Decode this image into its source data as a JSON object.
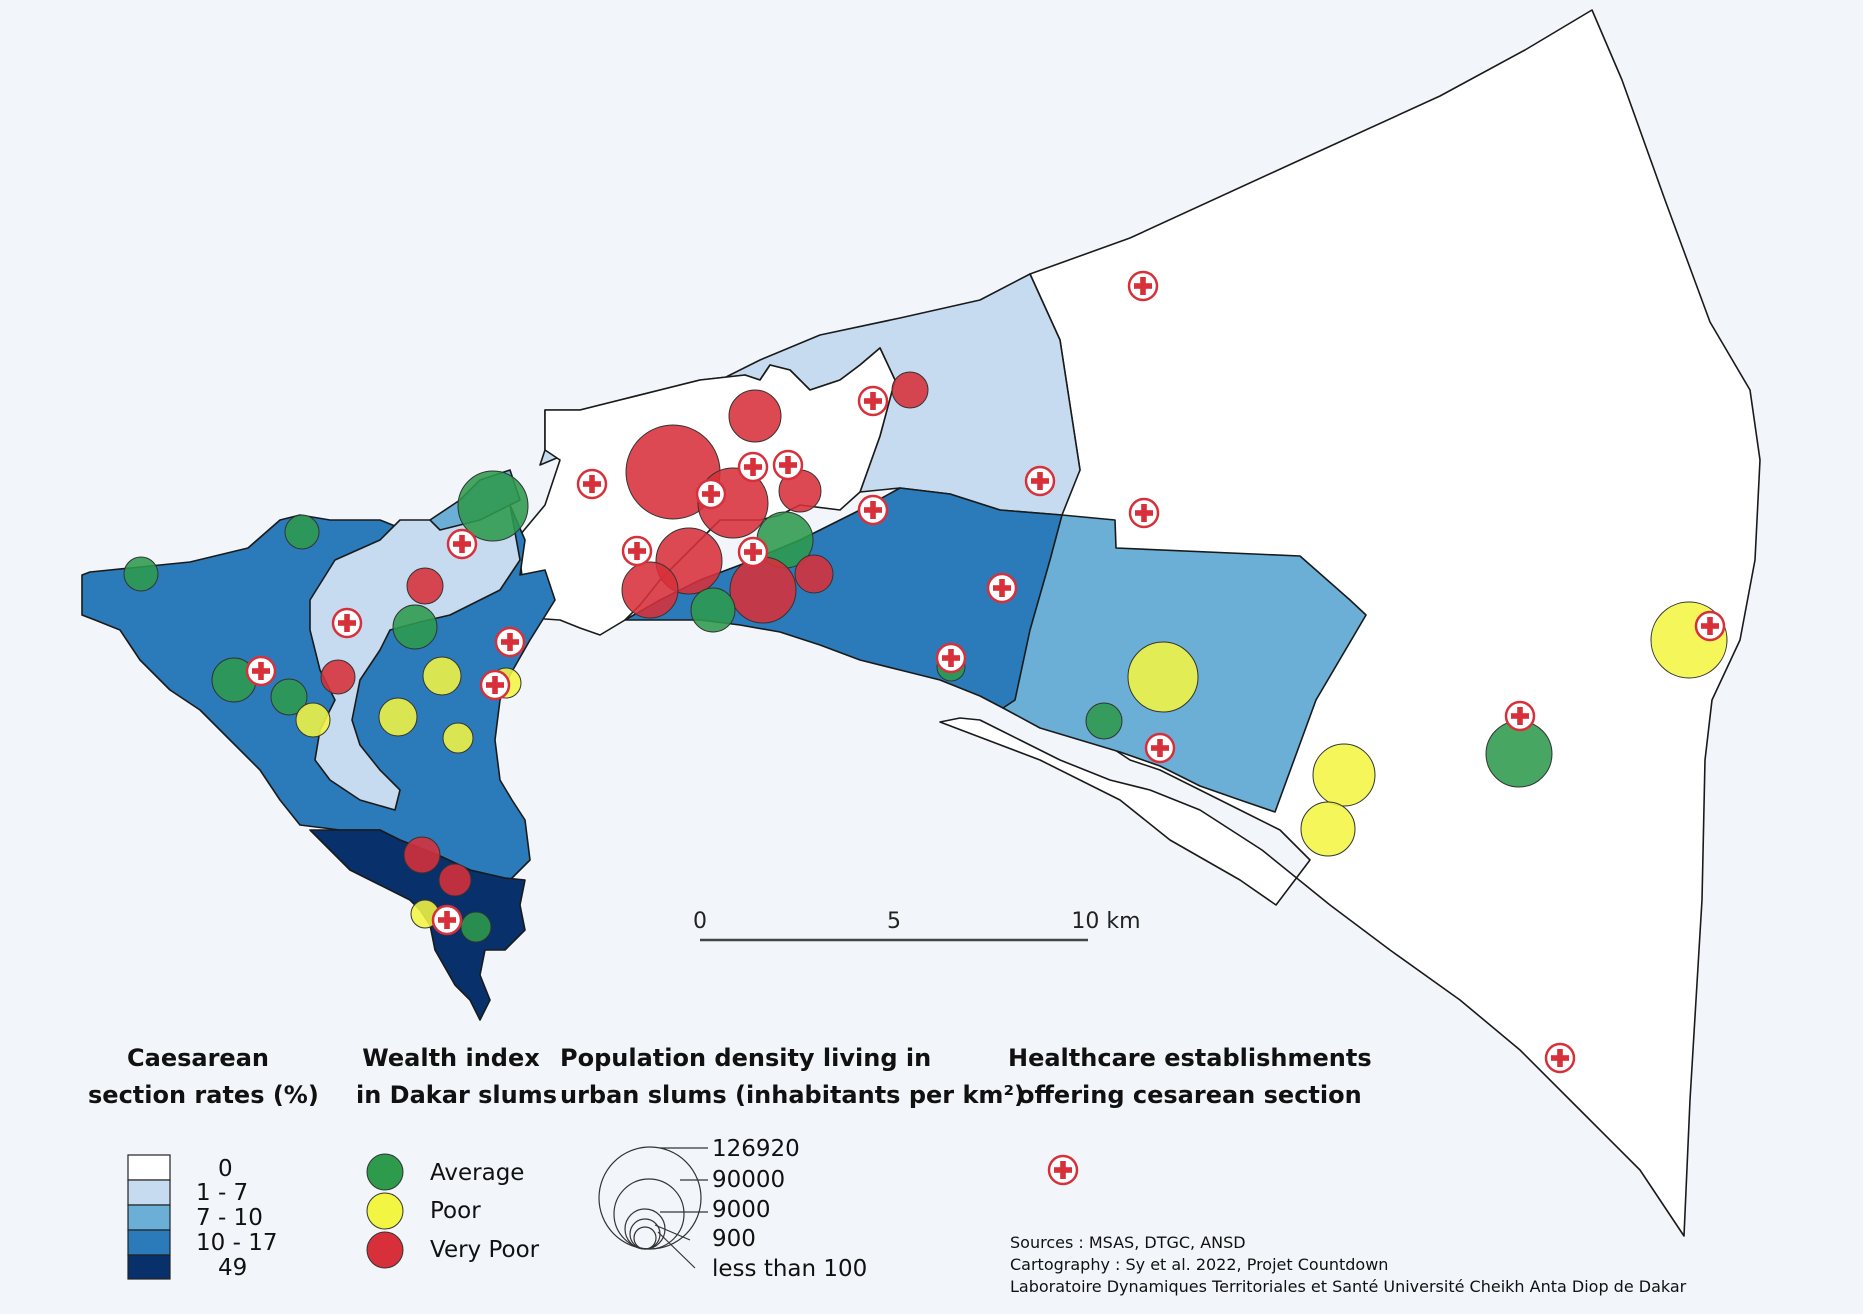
{
  "scale_bar": {
    "ticks": [
      "0",
      "5",
      "10 km"
    ]
  },
  "legend": {
    "caesarean": {
      "title_line1": "Caesarean",
      "title_line2": "section rates (%)",
      "classes": [
        {
          "label": "0",
          "color": "#ffffff"
        },
        {
          "label": "1 - 7",
          "color": "#c6dbef"
        },
        {
          "label": "7 - 10",
          "color": "#6baed6"
        },
        {
          "label": "10 - 17",
          "color": "#2b7bba"
        },
        {
          "label": "49",
          "color": "#08306b"
        }
      ]
    },
    "wealth": {
      "title_line1": "Wealth index",
      "title_line2": "in Dakar slums",
      "classes": [
        {
          "label": "Average",
          "color": "#2e9a4c"
        },
        {
          "label": "Poor",
          "color": "#f2f542"
        },
        {
          "label": "Very Poor",
          "color": "#d7303a"
        }
      ]
    },
    "density": {
      "title_line1": "Population density living in",
      "title_line2": "urban slums (inhabitants per km²)",
      "classes": [
        "126920",
        "90000",
        "9000",
        "900",
        "less than 100"
      ]
    },
    "health": {
      "title_line1": "Healthcare establishments",
      "title_line2": "offering cesarean section",
      "icon": "red-cross-icon"
    }
  },
  "credits": {
    "line1": "Sources : MSAS, DTGC, ANSD",
    "line2": "Cartography : Sy et al. 2022, Projet Countdown",
    "line3": "Laboratoire Dynamiques Territoriales et Santé Université Cheikh Anta Diop de Dakar"
  }
}
